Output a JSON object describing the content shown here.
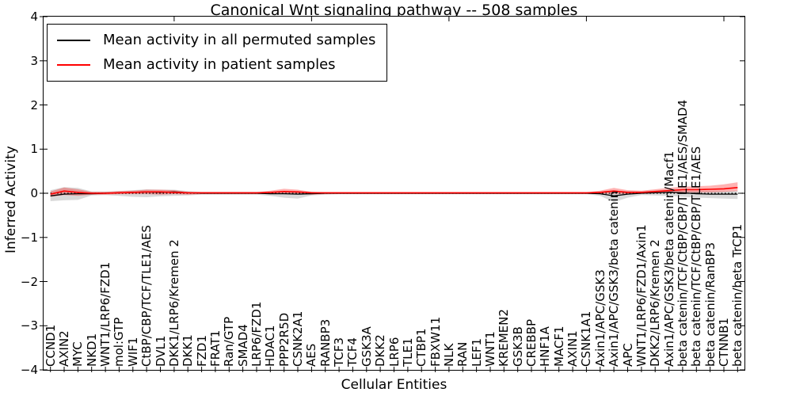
{
  "chart_data": {
    "type": "line",
    "title": "Canonical Wnt signaling pathway -- 508 samples",
    "xlabel": "Cellular Entities",
    "ylabel": "Inferred Activity",
    "ylim": [
      -4,
      4
    ],
    "yticks": [
      4,
      3,
      2,
      1,
      0,
      -1,
      -2,
      -3,
      -4
    ],
    "grid": false,
    "zero_line": {
      "style": "dotted",
      "color": "#000000",
      "y": 0
    },
    "legend": {
      "position": "upper left",
      "entries": [
        {
          "label": "Mean activity in all permuted samples",
          "color": "#000000"
        },
        {
          "label": "Mean activity in patient samples",
          "color": "#ff0000"
        }
      ]
    },
    "categories": [
      "CCND1",
      "AXIN2",
      "MYC",
      "NKD1",
      "WNT1/LRP6/FZD1",
      "mol:GTP",
      "WIF1",
      "CtBP/CBP/TCF/TLE1/AES",
      "DVL1",
      "DKK1/LRP6/Kremen 2",
      "DKK1",
      "FZD1",
      "FRAT1",
      "Ran/GTP",
      "SMAD4",
      "LRP6/FZD1",
      "HDAC1",
      "PPP2R5D",
      "CSNK2A1",
      "AES",
      "RANBP3",
      "TCF3",
      "TCF4",
      "GSK3A",
      "DKK2",
      "LRP6",
      "TLE1",
      "CTBP1",
      "FBXW11",
      "NLK",
      "RAN",
      "LEF1",
      "WNT1",
      "KREMEN2",
      "GSK3B",
      "CREBBP",
      "HNF1A",
      "MACF1",
      "AXIN1",
      "CSNK1A1",
      "Axin1/APC/GSK3",
      "Axin1/APC/GSK3/beta catenin",
      "APC",
      "WNT1/LRP6/FZD1/Axin1",
      "DKK2/LRP6/Kremen 2",
      "Axin1/APC/GSK3/beta catenin/Macf1",
      "beta catenin/TCF/CtBP/CBP/TLE1/AES/SMAD4",
      "beta catenin/TCF/CtBP/CBP/TLE1/AES",
      "beta catenin/RanBP3",
      "CTNNB1",
      "beta catenin/beta TrCP1"
    ],
    "series": [
      {
        "name": "Mean activity in all permuted samples",
        "color": "#000000",
        "band_color": "rgba(0,0,0,0.15)",
        "values": [
          -0.06,
          -0.02,
          -0.01,
          -0.01,
          0.0,
          0.01,
          0.02,
          0.03,
          0.02,
          0.03,
          0.01,
          0.0,
          0.0,
          0.0,
          0.0,
          0.0,
          -0.01,
          -0.01,
          -0.02,
          -0.01,
          0.0,
          0.0,
          0.0,
          0.0,
          0.0,
          0.0,
          0.0,
          0.0,
          0.0,
          0.0,
          0.0,
          0.0,
          0.0,
          0.0,
          0.0,
          0.0,
          0.0,
          0.0,
          0.0,
          0.0,
          -0.01,
          -0.06,
          -0.02,
          0.0,
          0.01,
          0.02,
          0.01,
          -0.01,
          -0.02,
          -0.02,
          -0.02
        ],
        "band_lo": [
          -0.18,
          -0.16,
          -0.15,
          -0.05,
          -0.04,
          -0.06,
          -0.08,
          -0.09,
          -0.07,
          -0.06,
          -0.05,
          -0.03,
          -0.03,
          -0.03,
          -0.03,
          -0.03,
          -0.06,
          -0.1,
          -0.12,
          -0.05,
          -0.03,
          -0.02,
          -0.02,
          -0.02,
          -0.02,
          -0.02,
          -0.02,
          -0.02,
          -0.02,
          -0.02,
          -0.02,
          -0.02,
          -0.02,
          -0.02,
          -0.02,
          -0.02,
          -0.02,
          -0.02,
          -0.02,
          -0.02,
          -0.06,
          -0.2,
          -0.1,
          -0.04,
          -0.05,
          -0.06,
          -0.08,
          -0.1,
          -0.11,
          -0.12,
          -0.13
        ],
        "band_hi": [
          0.07,
          0.14,
          0.12,
          0.04,
          0.04,
          0.05,
          0.07,
          0.09,
          0.08,
          0.08,
          0.05,
          0.03,
          0.03,
          0.03,
          0.03,
          0.03,
          0.04,
          0.04,
          0.05,
          0.03,
          0.02,
          0.02,
          0.02,
          0.02,
          0.02,
          0.02,
          0.02,
          0.02,
          0.02,
          0.02,
          0.02,
          0.02,
          0.02,
          0.02,
          0.02,
          0.02,
          0.02,
          0.02,
          0.02,
          0.02,
          0.04,
          0.06,
          0.05,
          0.04,
          0.06,
          0.07,
          0.06,
          0.05,
          0.05,
          0.05,
          0.06
        ]
      },
      {
        "name": "Mean activity in patient samples",
        "color": "#ff0000",
        "band_color": "rgba(255,0,0,0.30)",
        "values": [
          -0.02,
          0.05,
          0.02,
          0.0,
          0.0,
          0.01,
          0.02,
          0.03,
          0.03,
          0.02,
          0.01,
          0.01,
          0.01,
          0.01,
          0.01,
          0.01,
          0.02,
          0.04,
          0.03,
          0.01,
          0.01,
          0.01,
          0.01,
          0.01,
          0.01,
          0.01,
          0.01,
          0.01,
          0.01,
          0.01,
          0.01,
          0.01,
          0.01,
          0.01,
          0.01,
          0.01,
          0.01,
          0.01,
          0.01,
          0.01,
          0.02,
          0.05,
          0.02,
          0.02,
          0.04,
          0.06,
          0.08,
          0.08,
          0.09,
          0.1,
          0.13
        ],
        "band_lo": [
          -0.08,
          -0.04,
          -0.06,
          -0.03,
          -0.03,
          -0.02,
          -0.02,
          -0.02,
          -0.03,
          -0.02,
          -0.03,
          -0.02,
          -0.02,
          -0.02,
          -0.02,
          -0.02,
          -0.01,
          -0.02,
          -0.02,
          -0.03,
          -0.02,
          -0.02,
          -0.02,
          -0.02,
          -0.02,
          -0.02,
          -0.02,
          -0.02,
          -0.02,
          -0.02,
          -0.02,
          -0.02,
          -0.02,
          -0.02,
          -0.02,
          -0.02,
          -0.02,
          -0.02,
          -0.02,
          -0.02,
          -0.01,
          -0.01,
          -0.02,
          -0.01,
          0.0,
          0.01,
          0.02,
          0.02,
          0.02,
          0.03,
          0.05
        ],
        "band_hi": [
          0.04,
          0.13,
          0.09,
          0.03,
          0.03,
          0.05,
          0.06,
          0.08,
          0.08,
          0.07,
          0.03,
          0.02,
          0.02,
          0.02,
          0.02,
          0.02,
          0.06,
          0.1,
          0.08,
          0.03,
          0.02,
          0.02,
          0.02,
          0.02,
          0.02,
          0.02,
          0.02,
          0.02,
          0.02,
          0.02,
          0.02,
          0.02,
          0.02,
          0.02,
          0.02,
          0.02,
          0.02,
          0.02,
          0.02,
          0.02,
          0.06,
          0.12,
          0.07,
          0.06,
          0.09,
          0.12,
          0.15,
          0.16,
          0.17,
          0.2,
          0.25
        ]
      }
    ]
  }
}
